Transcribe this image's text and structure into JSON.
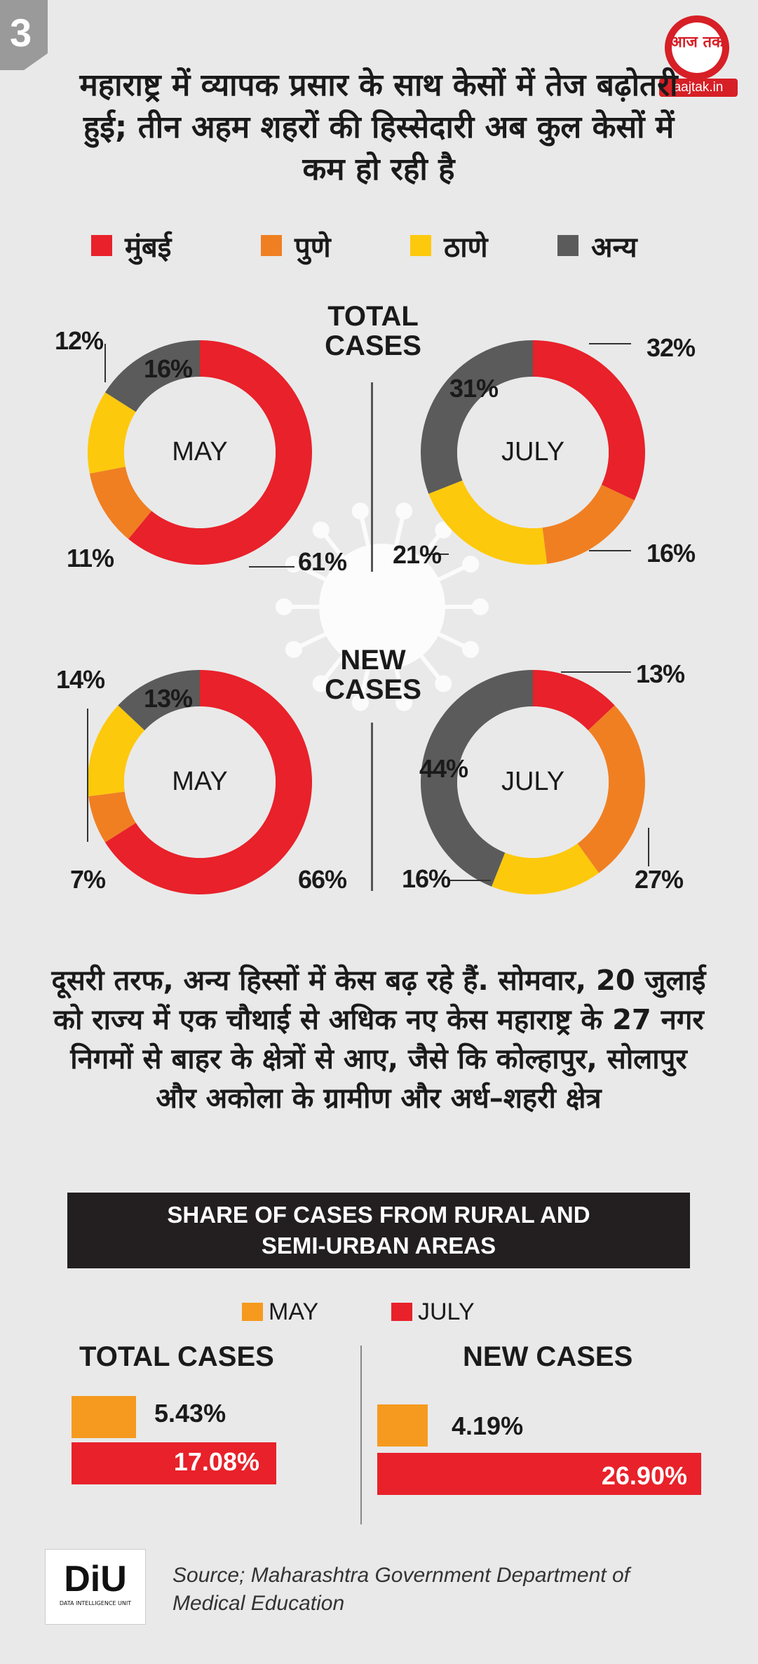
{
  "page": {
    "number": "3",
    "logo_text": "आज तक",
    "logo_site": "aajtak.in",
    "headline": "महाराष्ट्र में व्यापक प्रसार के साथ केसों में तेज बढ़ोतरी हुई; तीन अहम शहरों की हिस्सेदारी अब कुल केसों में कम हो रही है",
    "paragraph": "दूसरी तरफ, अन्य हिस्सों में केस बढ़ रहे हैं. सोमवार, 20 जुलाई को राज्य में एक चौथाई से अधिक नए केस महाराष्ट्र के 27 नगर निगमों से बाहर के क्षेत्रों से आए, जैसे कि  कोल्हापुर, सोलापुर और अकोला के ग्रामीण और अर्ध–शहरी क्षेत्र",
    "banner": "SHARE OF CASES FROM RURAL AND SEMI-URBAN AREAS",
    "source": "Source; Maharashtra Government Department of Medical Education",
    "diu_text": "DiU",
    "diu_sub": "DATA INTELLIGENCE UNIT"
  },
  "colors": {
    "mumbai": "#e8212a",
    "pune": "#f07f22",
    "thane": "#fdc90c",
    "other": "#5b5b5b",
    "may": "#f59a1f",
    "july": "#e8212a"
  },
  "legend": [
    {
      "label": "मुंबई",
      "color_key": "mumbai"
    },
    {
      "label": "पुणे",
      "color_key": "pune"
    },
    {
      "label": "ठाणे",
      "color_key": "thane"
    },
    {
      "label": "अन्य",
      "color_key": "other"
    }
  ],
  "chart_data": [
    {
      "type": "pie",
      "title": "TOTAL CASES",
      "center": "MAY",
      "labels": [
        "मुंबई",
        "पुणे",
        "ठाणे",
        "अन्य"
      ],
      "values": [
        61,
        11,
        12,
        16
      ],
      "value_labels": [
        "61%",
        "11%",
        "12%",
        "16%"
      ]
    },
    {
      "type": "pie",
      "title": "TOTAL CASES",
      "center": "JULY",
      "labels": [
        "मुंबई",
        "पुणे",
        "ठाणे",
        "अन्य"
      ],
      "values": [
        32,
        16,
        21,
        31
      ],
      "value_labels": [
        "32%",
        "16%",
        "21%",
        "31%"
      ]
    },
    {
      "type": "pie",
      "title": "NEW CASES",
      "center": "MAY",
      "labels": [
        "मुंबई",
        "पुणे",
        "ठाणे",
        "अन्य"
      ],
      "values": [
        66,
        7,
        14,
        13
      ],
      "value_labels": [
        "66%",
        "7%",
        "14%",
        "13%"
      ]
    },
    {
      "type": "pie",
      "title": "NEW CASES",
      "center": "JULY",
      "labels": [
        "मुंबई",
        "पुणे",
        "ठाणे",
        "अन्य"
      ],
      "values": [
        13,
        27,
        16,
        44
      ],
      "value_labels": [
        "13%",
        "27%",
        "16%",
        "44%"
      ]
    },
    {
      "type": "bar",
      "title": "TOTAL CASES",
      "categories": [
        "MAY",
        "JULY"
      ],
      "values": [
        5.43,
        17.08
      ],
      "value_labels": [
        "5.43%",
        "17.08%"
      ]
    },
    {
      "type": "bar",
      "title": "NEW CASES",
      "categories": [
        "MAY",
        "JULY"
      ],
      "values": [
        4.19,
        26.9
      ],
      "value_labels": [
        "4.19%",
        "26.90%"
      ]
    }
  ],
  "section_titles": {
    "total": "TOTAL CASES",
    "new": "NEW CASES"
  },
  "bar_legend": [
    {
      "label": "MAY",
      "color_key": "may"
    },
    {
      "label": "JULY",
      "color_key": "july"
    }
  ]
}
